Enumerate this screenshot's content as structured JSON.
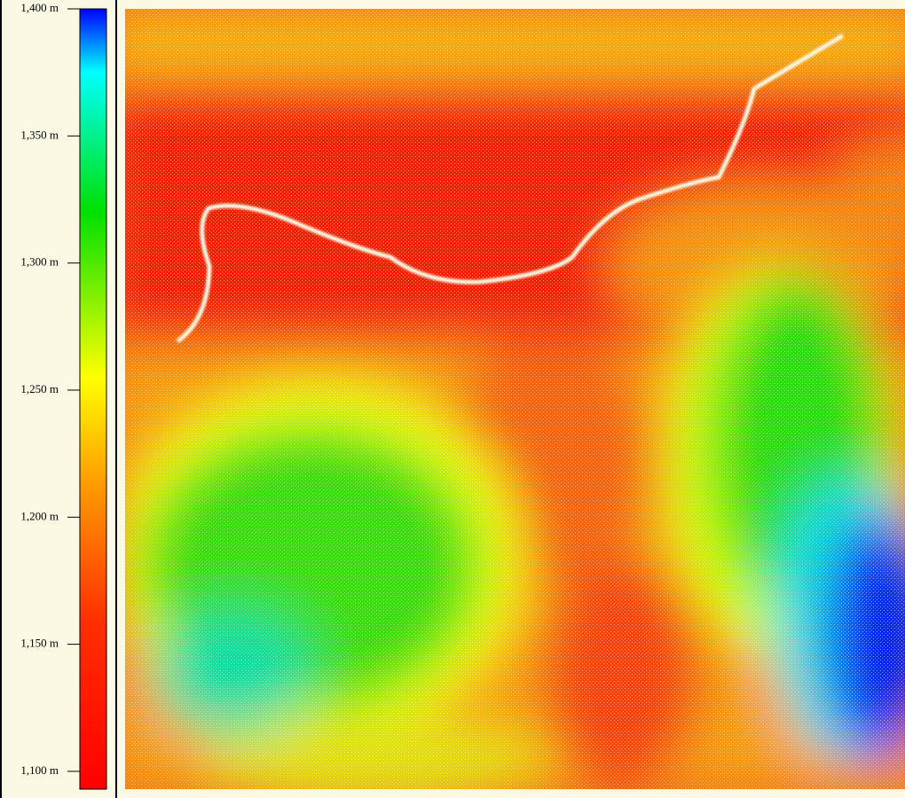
{
  "legend": {
    "range": [
      1093,
      1400
    ],
    "ticks": [
      {
        "value": 1400,
        "label": "1,400 m"
      },
      {
        "value": 1350,
        "label": "1,350 m"
      },
      {
        "value": 1300,
        "label": "1,300 m"
      },
      {
        "value": 1250,
        "label": "1,250 m"
      },
      {
        "value": 1200,
        "label": "1,200 m"
      },
      {
        "value": 1150,
        "label": "1,150 m"
      },
      {
        "value": 1100,
        "label": "1,100 m"
      }
    ],
    "stops": [
      {
        "value": 1093,
        "color": "#ff0000"
      },
      {
        "value": 1160,
        "color": "#ff3000"
      },
      {
        "value": 1215,
        "color": "#ffa000"
      },
      {
        "value": 1255,
        "color": "#ffff00"
      },
      {
        "value": 1320,
        "color": "#00e000"
      },
      {
        "value": 1375,
        "color": "#00ffff"
      },
      {
        "value": 1400,
        "color": "#0000ff"
      }
    ]
  }
}
